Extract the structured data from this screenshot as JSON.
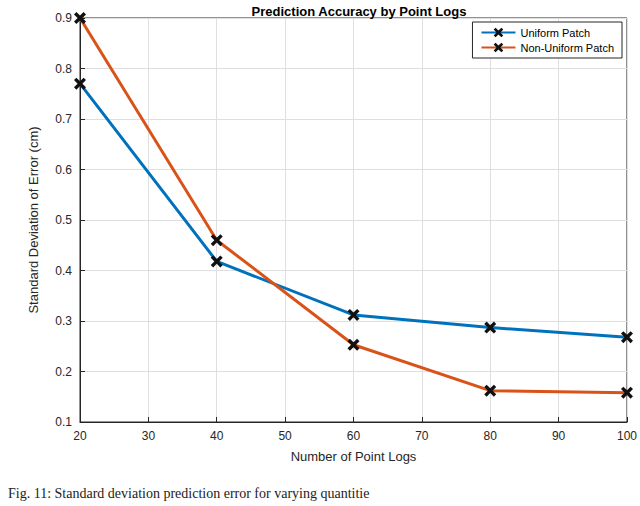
{
  "chart_data": {
    "type": "line",
    "title": "Prediction Accuracy by Point Logs",
    "x_label": "Number of Point Logs",
    "y_label": "Standard Deviation of Error (cm)",
    "caption": "Fig. 11: Standard deviation prediction error for varying quantitie",
    "x": [
      20,
      40,
      60,
      80,
      100
    ],
    "series": [
      {
        "name": "Uniform Patch",
        "color": "#0072bd",
        "marker": "x",
        "line_style": "solid",
        "values": [
          0.77,
          0.418,
          0.312,
          0.287,
          0.268
        ]
      },
      {
        "name": "Non-Uniform Patch",
        "color": "#d95319",
        "marker": "x",
        "line_style": "solid",
        "values": [
          0.9,
          0.46,
          0.253,
          0.162,
          0.158
        ]
      }
    ],
    "xlim": [
      20,
      100
    ],
    "xticks": [
      20,
      30,
      40,
      50,
      60,
      70,
      80,
      90,
      100
    ],
    "ylim": [
      0.1,
      0.9
    ],
    "yticks": [
      0.1,
      0.2,
      0.3,
      0.4,
      0.5,
      0.6,
      0.7,
      0.8,
      0.9
    ],
    "grid": true,
    "legend": "top-right"
  }
}
